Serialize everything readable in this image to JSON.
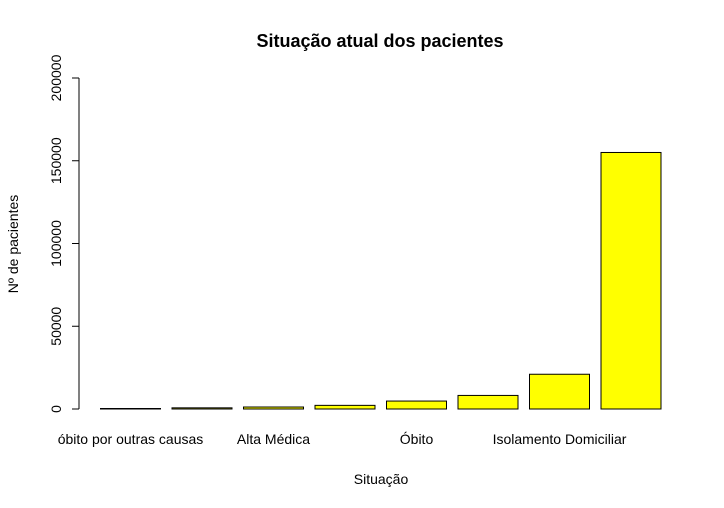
{
  "chart_data": {
    "type": "bar",
    "title": "Situação atual dos pacientes",
    "xlabel": "Situação",
    "ylabel": "Nº de pacientes",
    "ylim": [
      0,
      200000
    ],
    "yticks": [
      0,
      50000,
      100000,
      150000,
      200000
    ],
    "grid": false,
    "legend": "none",
    "bar_color": "#ffff00",
    "bar_border_color": "#000000",
    "categories": [
      "óbito por outras causas",
      "",
      "Alta Médica",
      "",
      "Óbito",
      "",
      "Isolamento Domiciliar",
      ""
    ],
    "values": [
      200,
      700,
      1200,
      2200,
      4800,
      8200,
      21000,
      155000
    ]
  }
}
